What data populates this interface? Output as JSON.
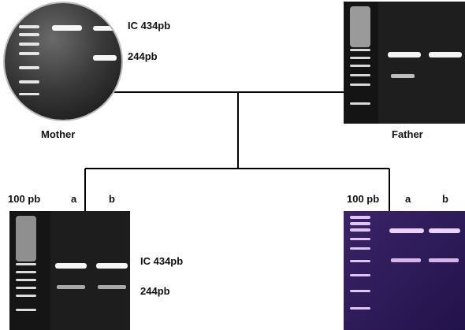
{
  "pedigree": {
    "mother": {
      "label": "Mother",
      "bands": {
        "upper": "IC 434pb",
        "lower": "244pb"
      }
    },
    "father": {
      "label": "Father"
    },
    "child_left": {
      "ladder_label": "100 pb",
      "lane_a": "a",
      "lane_b": "b",
      "bands": {
        "upper": "IC 434pb",
        "lower": "244pb"
      }
    },
    "child_right": {
      "ladder_label": "100 pb",
      "lane_a": "a",
      "lane_b": "b"
    }
  },
  "colors": {
    "gel_dark": "#1a1a1a",
    "band_white": "#f4f4f4",
    "gel_purple": "#2a1850",
    "band_lilac": "#e8c8f4",
    "connector": "#000000"
  }
}
